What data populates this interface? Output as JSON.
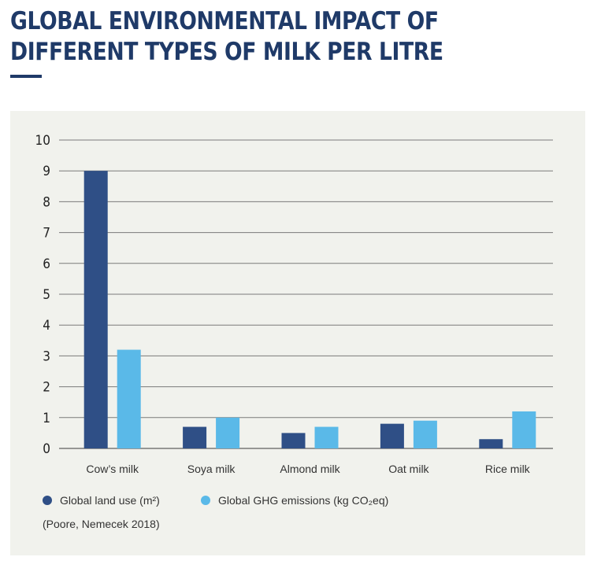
{
  "header": {
    "title": "GLOBAL ENVIRONMENTAL IMPACT OF DIFFERENT TYPES OF MILK PER LITRE"
  },
  "colors": {
    "title": "#1f3a68",
    "land_use": "#2f4f86",
    "ghg": "#5ab9e8",
    "panel_bg": "#f1f2ed",
    "grid": "#7a7a7a"
  },
  "legend": {
    "land_use_label": "Global land use (m²)",
    "ghg_label": "Global GHG emissions (kg CO₂eq)"
  },
  "source": "(Poore, Nemecek 2018)",
  "chart_data": {
    "type": "bar",
    "title": "GLOBAL ENVIRONMENTAL IMPACT OF DIFFERENT TYPES OF MILK PER LITRE",
    "xlabel": "",
    "ylabel": "",
    "ylim": [
      0,
      10
    ],
    "yticks": [
      "0",
      "1",
      "2",
      "3",
      "4",
      "5",
      "6",
      "7",
      "8",
      "9",
      "10"
    ],
    "categories": [
      "Cow’s milk",
      "Soya milk",
      "Almond milk",
      "Oat milk",
      "Rice milk"
    ],
    "series": [
      {
        "name": "Global land use (m²)",
        "color": "#2f4f86",
        "values": [
          9.0,
          0.7,
          0.5,
          0.8,
          0.3
        ]
      },
      {
        "name": "Global GHG emissions (kg CO₂eq)",
        "color": "#5ab9e8",
        "values": [
          3.2,
          1.0,
          0.7,
          0.9,
          1.2
        ]
      }
    ],
    "grid": true,
    "legend_position": "bottom-left"
  }
}
